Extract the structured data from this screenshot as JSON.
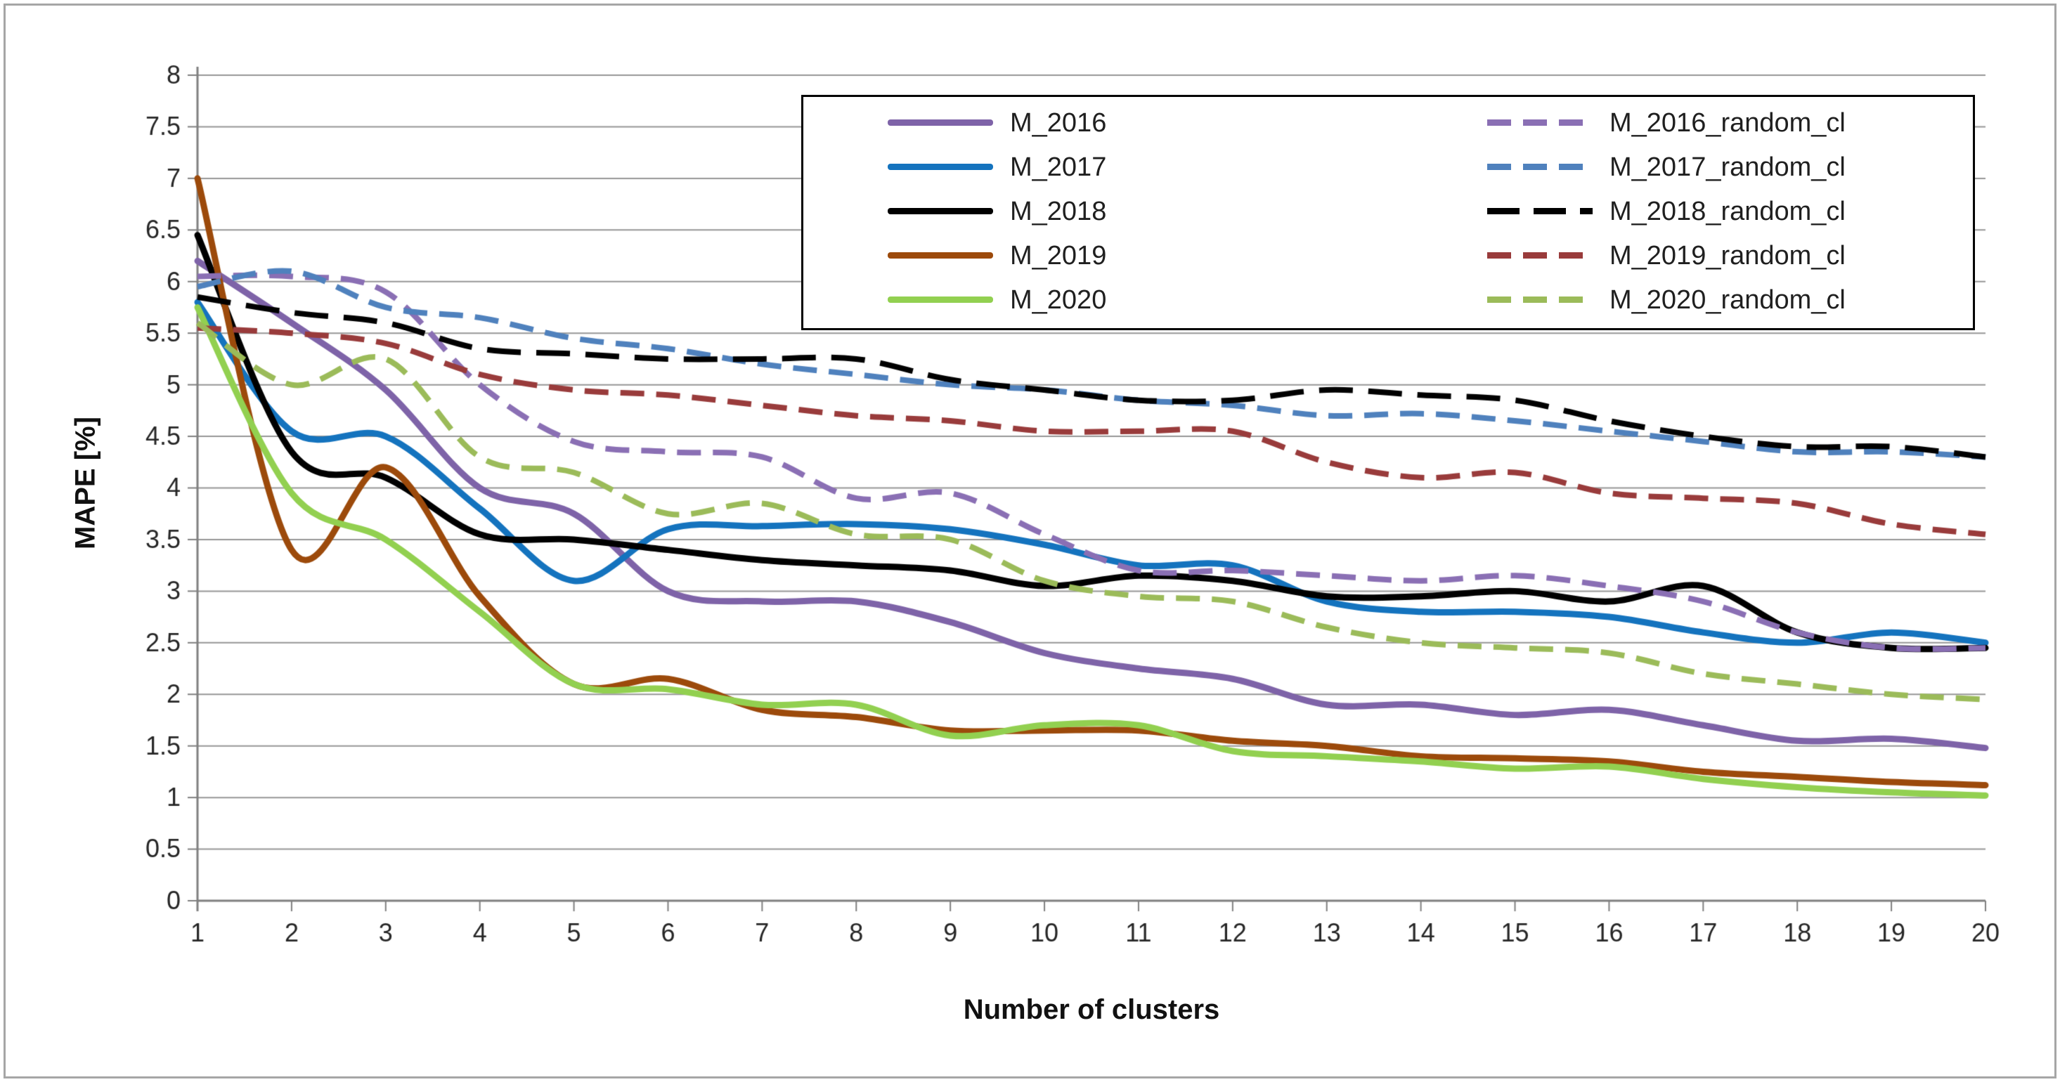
{
  "chart_data": {
    "type": "line",
    "title": "",
    "xlabel": "Number of clusters",
    "ylabel": "MAPE [%]",
    "x_ticks": [
      "1",
      "2",
      "3",
      "4",
      "5",
      "6",
      "7",
      "8",
      "9",
      "10",
      "11",
      "12",
      "13",
      "14",
      "15",
      "16",
      "17",
      "18",
      "19",
      "20"
    ],
    "y_ticks": [
      "0",
      "0.5",
      "1",
      "1.5",
      "2",
      "2.5",
      "3",
      "3.5",
      "4",
      "4.5",
      "5",
      "5.5",
      "6",
      "6.5",
      "7",
      "7.5",
      "8"
    ],
    "ylim": [
      0,
      8
    ],
    "xlim": [
      1,
      20
    ],
    "grid": "horizontal-major",
    "legend": {
      "position": "top-inside",
      "columns": 2,
      "border": true
    },
    "series": [
      {
        "name": "M_2016",
        "style": "solid",
        "color": "#7E63A8",
        "values": [
          6.2,
          5.6,
          4.95,
          4.0,
          3.75,
          3.0,
          2.9,
          2.9,
          2.7,
          2.4,
          2.25,
          2.15,
          1.9,
          1.9,
          1.8,
          1.85,
          1.7,
          1.55,
          1.57,
          1.48
        ]
      },
      {
        "name": "M_2017",
        "style": "solid",
        "color": "#1473BE",
        "values": [
          5.8,
          4.55,
          4.5,
          3.8,
          3.1,
          3.6,
          3.63,
          3.65,
          3.6,
          3.45,
          3.25,
          3.25,
          2.9,
          2.8,
          2.8,
          2.75,
          2.6,
          2.5,
          2.6,
          2.5
        ]
      },
      {
        "name": "M_2018",
        "style": "solid",
        "color": "#000000",
        "values": [
          6.45,
          4.35,
          4.1,
          3.55,
          3.5,
          3.4,
          3.3,
          3.25,
          3.2,
          3.05,
          3.15,
          3.1,
          2.95,
          2.95,
          3.0,
          2.9,
          3.05,
          2.6,
          2.45,
          2.45
        ]
      },
      {
        "name": "M_2019",
        "style": "solid",
        "color": "#9C4A0B",
        "values": [
          7.0,
          3.4,
          4.2,
          2.95,
          2.1,
          2.15,
          1.85,
          1.78,
          1.65,
          1.65,
          1.65,
          1.55,
          1.5,
          1.4,
          1.38,
          1.35,
          1.25,
          1.2,
          1.15,
          1.12
        ]
      },
      {
        "name": "M_2020",
        "style": "solid",
        "color": "#92D050",
        "values": [
          5.75,
          3.95,
          3.5,
          2.8,
          2.1,
          2.05,
          1.9,
          1.9,
          1.6,
          1.7,
          1.7,
          1.45,
          1.4,
          1.35,
          1.28,
          1.3,
          1.18,
          1.1,
          1.05,
          1.02
        ]
      },
      {
        "name": "M_2016_random_cl",
        "style": "dashed",
        "color": "#8A6FB4",
        "values": [
          6.05,
          6.05,
          5.9,
          5.0,
          4.45,
          4.35,
          4.3,
          3.9,
          3.95,
          3.55,
          3.2,
          3.2,
          3.15,
          3.1,
          3.15,
          3.05,
          2.9,
          2.6,
          2.45,
          2.45
        ]
      },
      {
        "name": "M_2017_random_cl",
        "style": "dashed",
        "color": "#4F81BD",
        "values": [
          5.95,
          6.1,
          5.75,
          5.65,
          5.45,
          5.35,
          5.2,
          5.1,
          5.0,
          4.95,
          4.85,
          4.8,
          4.7,
          4.72,
          4.65,
          4.55,
          4.45,
          4.35,
          4.35,
          4.3
        ]
      },
      {
        "name": "M_2018_random_cl",
        "style": "dashed",
        "color": "#000000",
        "values": [
          5.85,
          5.7,
          5.6,
          5.35,
          5.3,
          5.25,
          5.25,
          5.25,
          5.05,
          4.95,
          4.85,
          4.85,
          4.95,
          4.9,
          4.85,
          4.65,
          4.5,
          4.4,
          4.4,
          4.3
        ]
      },
      {
        "name": "M_2019_random_cl",
        "style": "dashed",
        "color": "#993B3B",
        "values": [
          5.55,
          5.5,
          5.4,
          5.1,
          4.95,
          4.9,
          4.8,
          4.7,
          4.65,
          4.55,
          4.55,
          4.55,
          4.25,
          4.1,
          4.15,
          3.95,
          3.9,
          3.85,
          3.65,
          3.55
        ]
      },
      {
        "name": "M_2020_random_cl",
        "style": "dashed",
        "color": "#9BBB59",
        "values": [
          5.6,
          5.0,
          5.25,
          4.3,
          4.15,
          3.75,
          3.85,
          3.55,
          3.5,
          3.1,
          2.95,
          2.9,
          2.65,
          2.5,
          2.45,
          2.4,
          2.2,
          2.1,
          2.0,
          1.95
        ]
      }
    ]
  }
}
